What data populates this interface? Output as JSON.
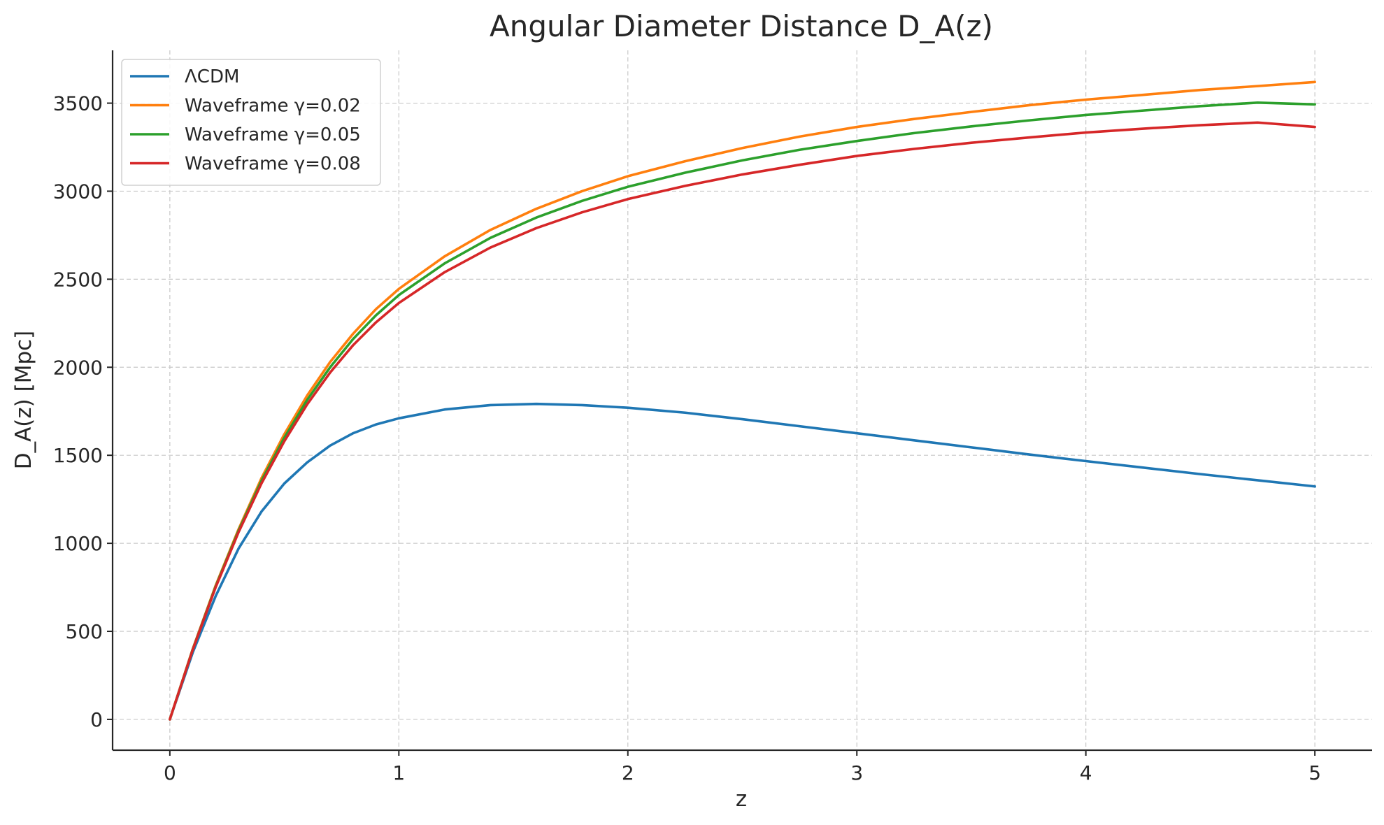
{
  "chart_data": {
    "type": "line",
    "title": "Angular Diameter Distance D_A(z)",
    "xlabel": "z",
    "ylabel": "D_A(z) [Mpc]",
    "xlim": [
      -0.25,
      5.25
    ],
    "ylim": [
      -175,
      3800
    ],
    "xticks": [
      0,
      1,
      2,
      3,
      4,
      5
    ],
    "xtick_labels": [
      "0",
      "1",
      "2",
      "3",
      "4",
      "5"
    ],
    "yticks": [
      0,
      500,
      1000,
      1500,
      2000,
      2500,
      3000,
      3500
    ],
    "ytick_labels": [
      "0",
      "500",
      "1000",
      "1500",
      "2000",
      "2500",
      "3000",
      "3500"
    ],
    "grid": true,
    "legend_position": "top-left",
    "x": [
      0,
      0.1,
      0.2,
      0.3,
      0.4,
      0.5,
      0.6,
      0.7,
      0.8,
      0.9,
      1.0,
      1.2,
      1.4,
      1.6,
      1.8,
      2.0,
      2.25,
      2.5,
      2.75,
      3.0,
      3.25,
      3.5,
      3.75,
      4.0,
      4.25,
      4.5,
      4.75,
      5.0
    ],
    "series": [
      {
        "name": "ΛCDM",
        "color": "#1f77b4",
        "values": [
          0,
          380,
          700,
          970,
          1180,
          1340,
          1460,
          1555,
          1625,
          1675,
          1710,
          1760,
          1785,
          1792,
          1785,
          1770,
          1742,
          1705,
          1665,
          1625,
          1585,
          1545,
          1505,
          1467,
          1430,
          1393,
          1358,
          1323
        ]
      },
      {
        "name": "Waveframe γ=0.02",
        "color": "#ff7f0e",
        "values": [
          0,
          400,
          760,
          1080,
          1370,
          1620,
          1840,
          2030,
          2190,
          2330,
          2445,
          2630,
          2780,
          2900,
          3000,
          3085,
          3170,
          3245,
          3310,
          3365,
          3410,
          3450,
          3488,
          3520,
          3547,
          3575,
          3597,
          3620
        ]
      },
      {
        "name": "Waveframe γ=0.05",
        "color": "#2ca02c",
        "values": [
          0,
          398,
          755,
          1072,
          1355,
          1600,
          1815,
          2000,
          2160,
          2295,
          2410,
          2590,
          2735,
          2850,
          2945,
          3025,
          3105,
          3175,
          3235,
          3285,
          3330,
          3368,
          3402,
          3433,
          3458,
          3483,
          3503,
          3493
        ]
      },
      {
        "name": "Waveframe γ=0.08",
        "color": "#d62728",
        "values": [
          0,
          396,
          750,
          1063,
          1340,
          1580,
          1790,
          1970,
          2125,
          2255,
          2365,
          2540,
          2680,
          2790,
          2880,
          2955,
          3030,
          3095,
          3150,
          3200,
          3240,
          3275,
          3305,
          3333,
          3355,
          3375,
          3390,
          3365
        ]
      }
    ]
  }
}
